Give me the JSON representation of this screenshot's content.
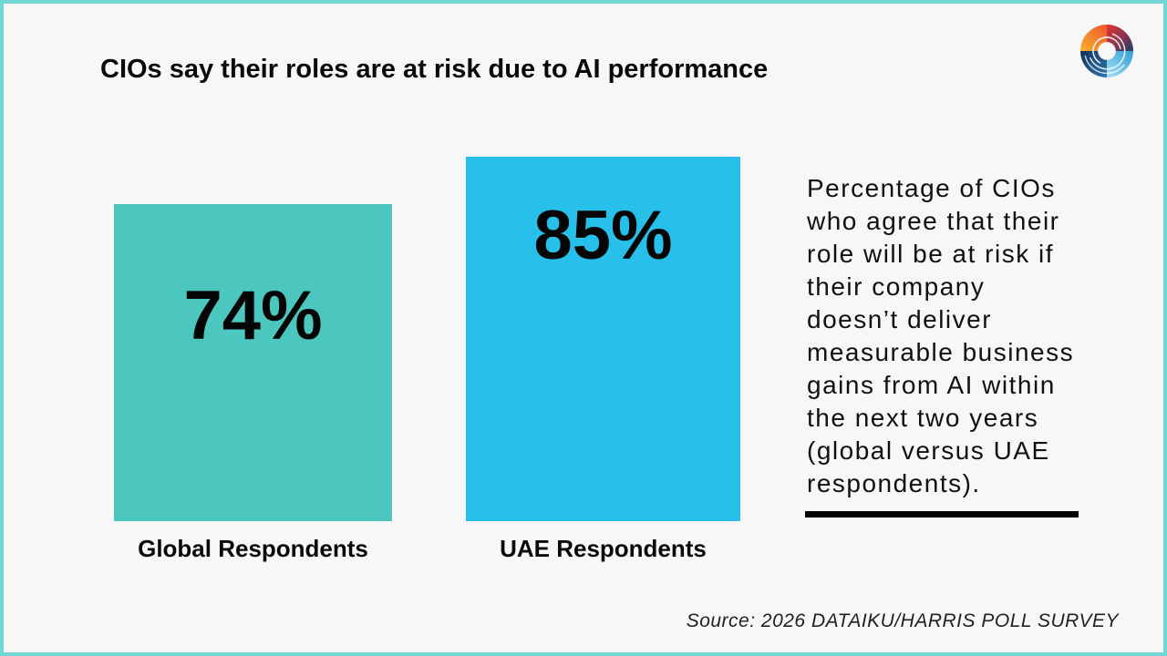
{
  "header": {
    "title": "CIOs say their roles are at risk due to AI performance"
  },
  "chart_data": {
    "type": "bar",
    "title": "CIOs say their roles are at risk due to AI performance",
    "categories": [
      "Global Respondents",
      "UAE Respondents"
    ],
    "values": [
      74,
      85
    ],
    "value_labels": [
      "74%",
      "85%"
    ],
    "bar_colors": [
      "#4cc7bf",
      "#27c0ea"
    ],
    "unit": "%",
    "ylim": [
      0,
      100
    ],
    "axes_visible": false,
    "grid": false,
    "legend": "none",
    "value_label_position": "inside-top"
  },
  "description": {
    "text": "Percentage of CIOs who agree that their role will be at risk if their company doesn’t deliver measurable business gains from AI within the next two years (global versus UAE respondents)."
  },
  "source": {
    "text": "Source: 2026 DATAIKU/HARRIS POLL SURVEY"
  },
  "logo": {
    "name": "multicolor-swirl-logo",
    "colors": [
      "#f5a42c",
      "#e8472d",
      "#1d3f6e",
      "#9fdcf2",
      "#14305a"
    ]
  },
  "colors": {
    "background": "#f7f7f7",
    "frame_border": "#72d6d3",
    "text": "#0a0a0a",
    "divider": "#000000"
  }
}
